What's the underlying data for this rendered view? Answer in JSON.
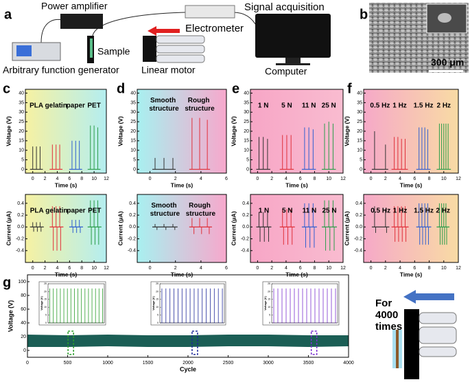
{
  "panel_labels": [
    "a",
    "b",
    "c",
    "d",
    "e",
    "f",
    "g"
  ],
  "diagram_a": {
    "power_amplifier": "Power amplifier",
    "signal_acquisition": "Signal acquisition",
    "electrometer": "Electrometer",
    "sample": "Sample",
    "function_generator": "Arbitrary function generator",
    "linear_motor": "Linear motor",
    "computer": "Computer"
  },
  "sem_image": {
    "scale_bar": "300 μm"
  },
  "diagram_g": {
    "caption": "For 4000 times"
  },
  "chart_data": [
    {
      "type": "spikes",
      "xlabel": "Time (s)",
      "ylabel": "Voltage (V)",
      "xlim": [
        -1.2,
        12
      ],
      "ylim": [
        -2,
        42
      ],
      "xticks": [
        0,
        2,
        4,
        6,
        8,
        10,
        12
      ],
      "yticks": [
        0,
        5,
        10,
        15,
        20,
        25,
        30,
        35,
        40
      ],
      "series": [
        {
          "name": "PLA",
          "color": "#333333",
          "x": [
            0,
            0.6,
            1.2
          ],
          "values": [
            12,
            12,
            12
          ]
        },
        {
          "name": "gelatin",
          "color": "#e0303a",
          "x": [
            3.2,
            3.8,
            4.4
          ],
          "values": [
            13,
            13,
            13
          ]
        },
        {
          "name": "paper",
          "color": "#2f5fd0",
          "x": [
            6.4,
            7,
            7.6
          ],
          "values": [
            15,
            15,
            15
          ]
        },
        {
          "name": "PET",
          "color": "#2a9d4a",
          "x": [
            9.4,
            10,
            10.6
          ],
          "values": [
            23,
            23,
            22
          ]
        }
      ]
    },
    {
      "type": "spikes",
      "xlabel": "Time (s)",
      "ylabel": "Voltage (V)",
      "xlim": [
        -1,
        6
      ],
      "ylim": [
        -2,
        42
      ],
      "xticks": [
        0,
        2,
        4,
        6
      ],
      "yticks": [
        0,
        5,
        10,
        15,
        20,
        25,
        30,
        35,
        40
      ],
      "series": [
        {
          "name": "Smooth structure",
          "color": "#333333",
          "x": [
            0.4,
            1.1,
            1.8
          ],
          "values": [
            6,
            6,
            6
          ]
        },
        {
          "name": "Rough structure",
          "color": "#e0303a",
          "x": [
            3.3,
            3.9,
            4.5
          ],
          "values": [
            27,
            27,
            26
          ]
        }
      ]
    },
    {
      "type": "spikes",
      "xlabel": "Time (s)",
      "ylabel": "Voltage (V)",
      "xlim": [
        -1,
        12
      ],
      "ylim": [
        -2,
        42
      ],
      "xticks": [
        0,
        2,
        4,
        6,
        8,
        10,
        12
      ],
      "yticks": [
        0,
        5,
        10,
        15,
        20,
        25,
        30,
        35,
        40
      ],
      "series": [
        {
          "name": "1 N",
          "color": "#333333",
          "x": [
            0.2,
            0.8,
            1.4
          ],
          "values": [
            17,
            17,
            16
          ]
        },
        {
          "name": "5 N",
          "color": "#e0303a",
          "x": [
            3.5,
            4.1,
            4.7
          ],
          "values": [
            18,
            18,
            18
          ]
        },
        {
          "name": "11 N",
          "color": "#2f5fd0",
          "x": [
            6.6,
            7.2,
            7.8
          ],
          "values": [
            22,
            22,
            21
          ]
        },
        {
          "name": "25 N",
          "color": "#2a9d4a",
          "x": [
            9.4,
            10,
            10.6
          ],
          "values": [
            24,
            25,
            24
          ]
        }
      ]
    },
    {
      "type": "spikes",
      "xlabel": "Time (s)",
      "ylabel": "Voltage (V)",
      "xlim": [
        -1,
        12
      ],
      "ylim": [
        -2,
        42
      ],
      "xticks": [
        0,
        2,
        4,
        6,
        8,
        10,
        12
      ],
      "yticks": [
        0,
        5,
        10,
        15,
        20,
        25,
        30,
        35,
        40
      ],
      "series": [
        {
          "name": "0.5 Hz",
          "color": "#333333",
          "x": [
            0.5,
            2
          ],
          "values": [
            20,
            13
          ]
        },
        {
          "name": "1 Hz",
          "color": "#e0303a",
          "x": [
            3.2,
            3.7,
            4.2,
            4.7
          ],
          "values": [
            17,
            17,
            16,
            16
          ]
        },
        {
          "name": "1.5 Hz",
          "color": "#2f5fd0",
          "x": [
            6.6,
            7,
            7.4,
            7.8
          ],
          "values": [
            22,
            22,
            22,
            21
          ]
        },
        {
          "name": "2 Hz",
          "color": "#2a9d4a",
          "x": [
            9.4,
            9.7,
            10,
            10.3,
            10.6
          ],
          "values": [
            24,
            24,
            24,
            24,
            24
          ]
        }
      ]
    },
    {
      "type": "spikes",
      "xlabel": "Time (s)",
      "ylabel": "Current (μA)",
      "xlim": [
        -1.2,
        12
      ],
      "ylim": [
        -0.6,
        0.55
      ],
      "xticks": [
        0,
        2,
        4,
        6,
        8,
        10,
        12
      ],
      "yticks": [
        -0.4,
        -0.2,
        {
          "value": 0,
          "label": "0.0"
        },
        0.2,
        0.4
      ],
      "series": [
        {
          "name": "PLA",
          "color": "#333333",
          "x": [
            0,
            0.15,
            0.6,
            0.75,
            1.2,
            1.35
          ],
          "values": [
            0.08,
            -0.08,
            0.08,
            -0.08,
            0.08,
            -0.08
          ]
        },
        {
          "name": "gelatin",
          "color": "#e0303a",
          "x": [
            3.2,
            3.35,
            3.8,
            3.95,
            4.4,
            4.55
          ],
          "values": [
            0.35,
            -0.4,
            0.35,
            -0.4,
            0.35,
            -0.4
          ]
        },
        {
          "name": "paper",
          "color": "#2f5fd0",
          "x": [
            6.4,
            6.55,
            7,
            7.15,
            7.6,
            7.75
          ],
          "values": [
            0.12,
            -0.1,
            0.12,
            -0.1,
            0.12,
            -0.1
          ]
        },
        {
          "name": "PET",
          "color": "#2a9d4a",
          "x": [
            9.4,
            9.55,
            10,
            10.15,
            10.6,
            10.75
          ],
          "values": [
            0.45,
            -0.3,
            0.45,
            -0.3,
            0.45,
            -0.3
          ]
        }
      ]
    },
    {
      "type": "spikes",
      "xlabel": "Time (s)",
      "ylabel": "Current (μA)",
      "xlim": [
        -1,
        6
      ],
      "ylim": [
        -0.6,
        0.55
      ],
      "xticks": [
        0,
        2,
        4,
        6
      ],
      "yticks": [
        -0.4,
        -0.2,
        {
          "value": 0,
          "label": "0.0"
        },
        0.2,
        0.4
      ],
      "series": [
        {
          "name": "Smooth structure",
          "color": "#333333",
          "x": [
            0.4,
            0.55,
            1.1,
            1.25,
            1.8,
            1.95
          ],
          "values": [
            0.05,
            -0.05,
            0.05,
            -0.05,
            0.05,
            -0.05
          ]
        },
        {
          "name": "Rough structure",
          "color": "#e0303a",
          "x": [
            3.3,
            3.45,
            3.9,
            4.05,
            4.5,
            4.65
          ],
          "values": [
            0.15,
            -0.12,
            0.15,
            -0.12,
            0.15,
            -0.12
          ]
        }
      ]
    },
    {
      "type": "spikes",
      "xlabel": "Time (s)",
      "ylabel": "Current (μA)",
      "xlim": [
        -1,
        12
      ],
      "ylim": [
        -0.6,
        0.55
      ],
      "xticks": [
        0,
        2,
        4,
        6,
        8,
        10,
        12
      ],
      "yticks": [
        -0.4,
        -0.2,
        {
          "value": 0,
          "label": "0.0"
        },
        0.2,
        0.4
      ],
      "series": [
        {
          "name": "1 N",
          "color": "#333333",
          "x": [
            0.2,
            0.35,
            0.8,
            0.95,
            1.4,
            1.55
          ],
          "values": [
            0.25,
            -0.25,
            0.25,
            -0.25,
            0.25,
            -0.25
          ]
        },
        {
          "name": "5 N",
          "color": "#e0303a",
          "x": [
            3.5,
            3.65,
            4.1,
            4.25,
            4.7,
            4.85
          ],
          "values": [
            0.3,
            -0.3,
            0.3,
            -0.3,
            0.3,
            -0.3
          ]
        },
        {
          "name": "11 N",
          "color": "#2f5fd0",
          "x": [
            6.6,
            6.75,
            7.2,
            7.35,
            7.8,
            7.95
          ],
          "values": [
            0.4,
            -0.35,
            0.4,
            -0.35,
            0.4,
            -0.35
          ]
        },
        {
          "name": "25 N",
          "color": "#2a9d4a",
          "x": [
            9.4,
            9.55,
            10,
            10.15,
            10.6,
            10.75
          ],
          "values": [
            0.45,
            -0.4,
            0.45,
            -0.4,
            0.45,
            -0.4
          ]
        }
      ]
    },
    {
      "type": "spikes",
      "xlabel": "Time (s)",
      "ylabel": "Current (μA)",
      "xlim": [
        -1,
        12
      ],
      "ylim": [
        -0.6,
        0.55
      ],
      "xticks": [
        0,
        2,
        4,
        6,
        8,
        10,
        12
      ],
      "yticks": [
        -0.4,
        -0.2,
        {
          "value": 0,
          "label": "0.0"
        },
        0.2,
        0.4
      ],
      "series": [
        {
          "name": "0.5 Hz",
          "color": "#333333",
          "x": [
            0.5,
            0.65,
            2,
            2.15
          ],
          "values": [
            0.35,
            -0.1,
            0.3,
            -0.1
          ]
        },
        {
          "name": "1 Hz",
          "color": "#e0303a",
          "x": [
            3.2,
            3.3,
            3.7,
            3.8,
            4.2,
            4.3,
            4.7,
            4.8
          ],
          "values": [
            0.35,
            -0.25,
            0.35,
            -0.25,
            0.35,
            -0.25,
            0.35,
            -0.25
          ]
        },
        {
          "name": "1.5 Hz",
          "color": "#2f5fd0",
          "x": [
            6.6,
            6.7,
            7,
            7.1,
            7.4,
            7.5,
            7.8,
            7.9
          ],
          "values": [
            0.4,
            -0.3,
            0.4,
            -0.3,
            0.4,
            -0.3,
            0.4,
            -0.3
          ]
        },
        {
          "name": "2 Hz",
          "color": "#2a9d4a",
          "x": [
            9.4,
            9.5,
            9.7,
            9.8,
            10,
            10.1,
            10.3,
            10.4
          ],
          "values": [
            0.4,
            -0.3,
            0.4,
            -0.3,
            0.4,
            -0.3,
            0.4,
            -0.3
          ]
        }
      ]
    },
    {
      "type": "band",
      "xlabel": "Cycle",
      "ylabel": "Voltage (V)",
      "xlim": [
        0,
        4000
      ],
      "ylim": [
        -10,
        110
      ],
      "xticks": [
        0,
        500,
        1000,
        1500,
        2000,
        2500,
        3000,
        3500,
        4000
      ],
      "yticks": [
        0,
        20,
        40,
        60,
        80,
        100
      ],
      "series": [
        {
          "color": "#1b5e55",
          "x": [
            0,
            500,
            1000,
            1500,
            2000,
            2500,
            3000,
            3500,
            4000
          ],
          "values": [
            23,
            22,
            23,
            22,
            22,
            23,
            23,
            22,
            22
          ],
          "lower": [
            5,
            5,
            6,
            5,
            5,
            6,
            6,
            5,
            6
          ]
        }
      ],
      "highlights": [
        {
          "x": 540,
          "color": "#2a9d2a"
        },
        {
          "x": 2085,
          "color": "#1f2a9a"
        },
        {
          "x": 3570,
          "color": "#7a2fd0"
        }
      ]
    },
    {
      "type": "spikes",
      "ylabel": "Voltage (V)",
      "ylim": [
        0,
        25
      ],
      "yticks": [
        0,
        5,
        10,
        15,
        20,
        25
      ],
      "series": [
        {
          "color": "#2a9d2a",
          "values": [
            22,
            22,
            22,
            22,
            22,
            22,
            22,
            22,
            22,
            22,
            22,
            22,
            22,
            22,
            22,
            22
          ]
        }
      ]
    },
    {
      "type": "spikes",
      "ylabel": "Voltage (V)",
      "ylim": [
        0,
        25
      ],
      "yticks": [
        0,
        5,
        10,
        15,
        20,
        25
      ],
      "series": [
        {
          "color": "#1f2a9a",
          "values": [
            22,
            22,
            22,
            22,
            22,
            22,
            22,
            22,
            22,
            22,
            22,
            22,
            22,
            22,
            22,
            22
          ]
        }
      ]
    },
    {
      "type": "spikes",
      "ylabel": "Voltage (V)",
      "ylim": [
        0,
        25
      ],
      "yticks": [
        0,
        5,
        10,
        15,
        20,
        25
      ],
      "series": [
        {
          "color": "#7a2fd0",
          "values": [
            22,
            22,
            22,
            22,
            22,
            22,
            22,
            22,
            22,
            22,
            22,
            22,
            22,
            22,
            22,
            22
          ]
        }
      ]
    }
  ]
}
